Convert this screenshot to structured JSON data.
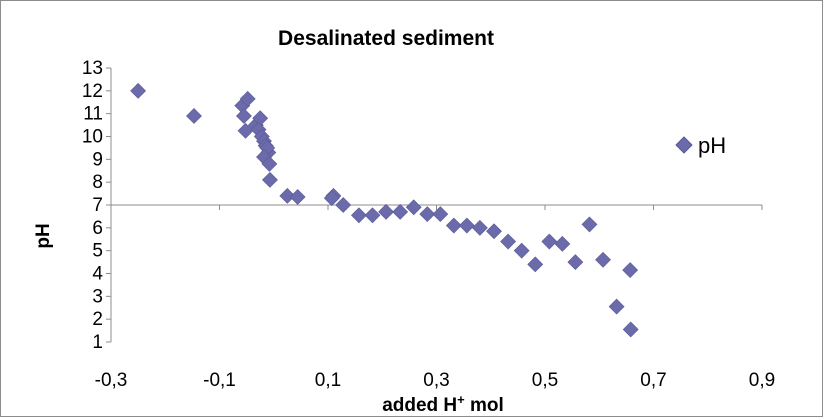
{
  "chart_data": {
    "type": "scatter",
    "title": "Desalinated sediment",
    "xlabel": "added H",
    "xlabel_sup": "+",
    "xlabel_after": " mol",
    "ylabel": "pH",
    "xlim": [
      -0.3,
      0.9
    ],
    "ylim": [
      1,
      13
    ],
    "x_ticks": [
      -0.3,
      -0.1,
      0.1,
      0.3,
      0.5,
      0.7,
      0.9
    ],
    "x_tick_labels": [
      "-0,3",
      "-0,1",
      "0,1",
      "0,3",
      "0,5",
      "0,7",
      "0,9"
    ],
    "y_ticks": [
      1,
      2,
      3,
      4,
      5,
      6,
      7,
      8,
      9,
      10,
      11,
      12,
      13
    ],
    "y_tick_labels": [
      "1",
      "2",
      "3",
      "4",
      "5",
      "6",
      "7",
      "8",
      "9",
      "10",
      "11",
      "12",
      "13"
    ],
    "x_axis_crosses_at_y": 7,
    "grid": false,
    "legend_position": "right",
    "marker": "diamond",
    "series": [
      {
        "name": "pH",
        "color": "#6b6bab",
        "points": [
          [
            -0.25,
            12.0
          ],
          [
            -0.147,
            10.9
          ],
          [
            -0.058,
            11.35
          ],
          [
            -0.048,
            11.65
          ],
          [
            -0.055,
            10.9
          ],
          [
            -0.052,
            10.25
          ],
          [
            -0.033,
            10.5
          ],
          [
            -0.025,
            10.8
          ],
          [
            -0.028,
            10.3
          ],
          [
            -0.022,
            10.0
          ],
          [
            -0.018,
            9.8
          ],
          [
            -0.015,
            9.6
          ],
          [
            -0.01,
            9.3
          ],
          [
            -0.012,
            9.5
          ],
          [
            -0.018,
            9.1
          ],
          [
            -0.008,
            8.8
          ],
          [
            -0.007,
            8.1
          ],
          [
            0.025,
            7.4
          ],
          [
            0.044,
            7.35
          ],
          [
            0.11,
            7.4
          ],
          [
            0.107,
            7.3
          ],
          [
            0.128,
            7.0
          ],
          [
            0.157,
            6.55
          ],
          [
            0.182,
            6.55
          ],
          [
            0.207,
            6.7
          ],
          [
            0.233,
            6.7
          ],
          [
            0.258,
            6.9
          ],
          [
            0.283,
            6.6
          ],
          [
            0.307,
            6.6
          ],
          [
            0.332,
            6.1
          ],
          [
            0.356,
            6.1
          ],
          [
            0.38,
            6.0
          ],
          [
            0.406,
            5.85
          ],
          [
            0.432,
            5.4
          ],
          [
            0.457,
            5.0
          ],
          [
            0.482,
            4.4
          ],
          [
            0.508,
            5.4
          ],
          [
            0.532,
            5.3
          ],
          [
            0.556,
            4.5
          ],
          [
            0.582,
            6.15
          ],
          [
            0.607,
            4.6
          ],
          [
            0.632,
            2.55
          ],
          [
            0.657,
            4.15
          ],
          [
            0.658,
            1.55
          ]
        ]
      }
    ]
  }
}
